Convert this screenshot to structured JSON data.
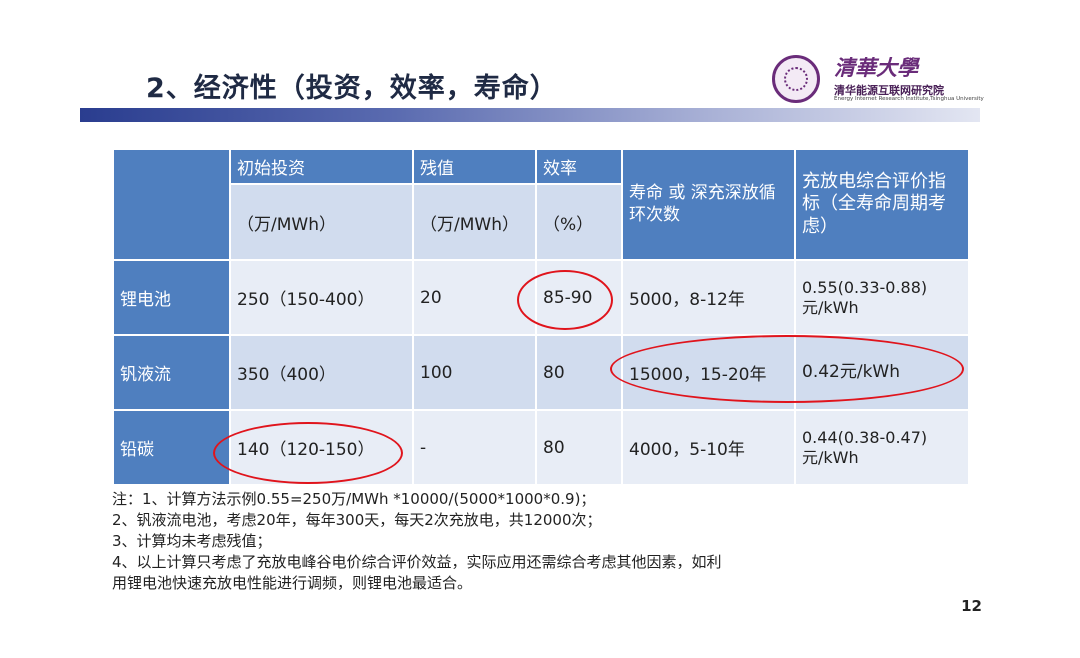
{
  "slide": {
    "title": "2、经济性（投资，效率，寿命）",
    "page_number": "12"
  },
  "logo": {
    "calligraphy": "清華大學",
    "name": "清华能源互联网研究院",
    "english": "Energy Internet Research Institute,Tsinghua University"
  },
  "table": {
    "headers": {
      "investment": "初始投资",
      "residual": "残值",
      "efficiency": "效率",
      "lifetime": "寿命 或 深充深放循环次数",
      "index": "充放电综合评价指标（全寿命周期考虑）"
    },
    "units": {
      "investment": "（万/MWh）",
      "residual": "（万/MWh）",
      "efficiency": "（%）"
    },
    "rows": [
      {
        "name": "锂电池",
        "investment": "250（150-400）",
        "residual": "20",
        "efficiency": "85-90",
        "lifetime": "5000，8-12年",
        "index": "0.55(0.33-0.88)元/kWh"
      },
      {
        "name": "钒液流",
        "investment": "350（400）",
        "residual": "100",
        "efficiency": "80",
        "lifetime": "15000，15-20年",
        "index": "0.42元/kWh"
      },
      {
        "name": "铅碳",
        "investment": "140（120-150）",
        "residual": "-",
        "efficiency": "80",
        "lifetime": "4000，5-10年",
        "index": "0.44(0.38-0.47)元/kWh"
      }
    ]
  },
  "notes": [
    "注：1、计算方法示例0.55=250万/MWh *10000/(5000*1000*0.9)；",
    "2、钒液流电池，考虑20年，每年300天，每天2次充放电，共12000次；",
    "3、计算均未考虑残值；",
    "4、以上计算只考虑了充放电峰谷电价综合评价效益，实际应用还需综合考虑其他因素，如利",
    "用锂电池快速充放电性能进行调频，则锂电池最适合。"
  ],
  "colors": {
    "header_blue": "#4f7fbf",
    "row_light": "#e8edf6",
    "row_dark": "#d1dcee",
    "highlight_red": "#e0141c",
    "logo_purple": "#6a2c7a"
  }
}
